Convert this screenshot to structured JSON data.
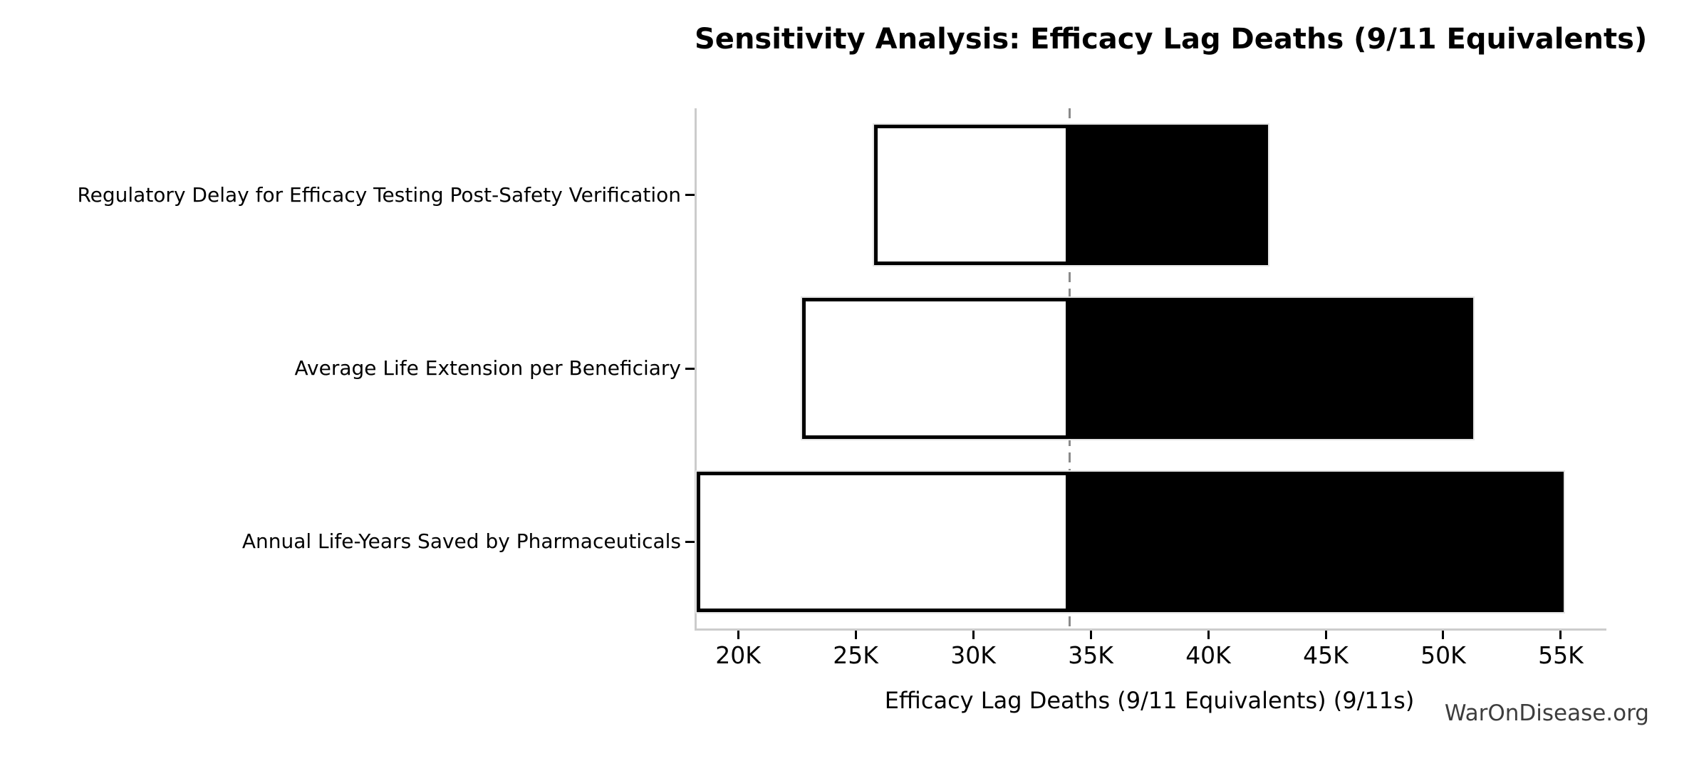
{
  "title": "Sensitivity Analysis: Efficacy Lag Deaths (9/11 Equivalents)",
  "watermark": "WarOnDisease.org",
  "chart_data": {
    "type": "bar",
    "subtype": "tornado-horizontal",
    "title": "Sensitivity Analysis: Efficacy Lag Deaths (9/11 Equivalents)",
    "xlabel": "Efficacy Lag Deaths (9/11 Equivalents) (9/11s)",
    "ylabel": "",
    "grid": false,
    "legend": false,
    "baseline": 34100,
    "xlim": [
      18240,
      56940
    ],
    "xtick_values": [
      20000,
      25000,
      30000,
      35000,
      40000,
      45000,
      50000,
      55000
    ],
    "xtick_labels": [
      "20K",
      "25K",
      "30K",
      "35K",
      "40K",
      "45K",
      "50K",
      "55K"
    ],
    "rows": [
      {
        "category": "Regulatory Delay for Efficacy Testing Post-Safety Verification",
        "low": 25800,
        "high": 42550
      },
      {
        "category": "Average Life Extension per Beneficiary",
        "low": 22730,
        "high": 51270
      },
      {
        "category": "Annual Life-Years Saved by Pharmaceuticals",
        "low": 18240,
        "high": 55120
      }
    ],
    "colors": {
      "low_fill": "#ffffff",
      "high_fill": "#000000",
      "bar_edge": "#000000",
      "bar_halo": "#e4e4e4",
      "baseline_line": "#8a8a8a",
      "spine": "#cccccc",
      "text": "#000000",
      "watermark": "#3d3d3d",
      "background": "#ffffff"
    }
  }
}
